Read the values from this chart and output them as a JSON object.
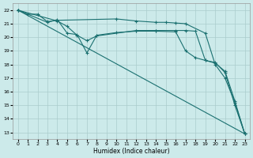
{
  "background_color": "#cceaea",
  "grid_color": "#aacccc",
  "line_color": "#1a7070",
  "xlabel": "Humidex (Indice chaleur)",
  "xlim": [
    -0.5,
    23.5
  ],
  "ylim": [
    12.5,
    22.5
  ],
  "yticks": [
    13,
    14,
    15,
    16,
    17,
    18,
    19,
    20,
    21,
    22
  ],
  "xticks": [
    0,
    1,
    2,
    3,
    4,
    5,
    6,
    7,
    8,
    9,
    10,
    11,
    12,
    13,
    14,
    15,
    16,
    17,
    18,
    19,
    20,
    21,
    22,
    23
  ],
  "series1_x": [
    0,
    1,
    2,
    3,
    4,
    10,
    12,
    14,
    15,
    16,
    17,
    19,
    20,
    21,
    22,
    23
  ],
  "series1_y": [
    22,
    21.7,
    21.7,
    21.15,
    21.25,
    21.35,
    21.2,
    21.1,
    21.1,
    21.05,
    21.0,
    20.3,
    18.0,
    17.0,
    15.2,
    12.9
  ],
  "series2_x": [
    0,
    3,
    4,
    5,
    6,
    7,
    8,
    10,
    12,
    14,
    16,
    17,
    18,
    19,
    20,
    21,
    22,
    23
  ],
  "series2_y": [
    22,
    21.1,
    21.3,
    20.3,
    20.2,
    18.85,
    20.15,
    20.35,
    20.45,
    20.45,
    20.4,
    19.0,
    18.5,
    18.3,
    18.15,
    17.4,
    15.0,
    12.9
  ],
  "series3_x": [
    0,
    4,
    5,
    6,
    7,
    8,
    12,
    14,
    16,
    17,
    18,
    19,
    20,
    21,
    22,
    23
  ],
  "series3_y": [
    22,
    21.2,
    20.8,
    20.15,
    19.75,
    20.1,
    20.5,
    20.5,
    20.5,
    20.5,
    20.45,
    18.3,
    18.1,
    17.5,
    15.3,
    12.9
  ],
  "series4_x": [
    0,
    23
  ],
  "series4_y": [
    22,
    12.9
  ]
}
